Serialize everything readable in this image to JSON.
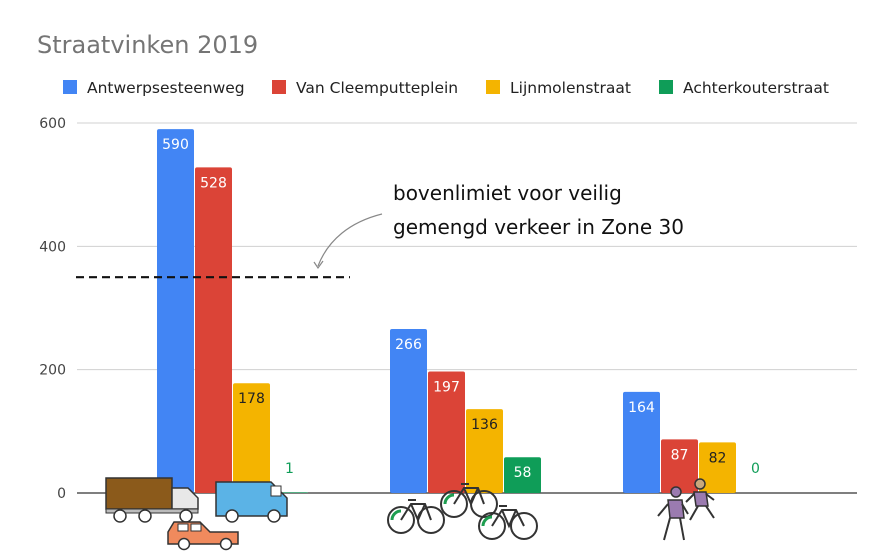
{
  "chart_data": {
    "type": "bar",
    "title": "Straatvinken 2019",
    "xlabel": "",
    "ylabel": "",
    "ylim": [
      0,
      600
    ],
    "yticks": [
      0,
      200,
      400,
      600
    ],
    "grid": true,
    "legend_position": "top",
    "categories": [
      "Gemotoriseerd verkeer",
      "Fietsers",
      "Voetgangers"
    ],
    "category_icons": [
      "truck-van-car-icon",
      "bicycles-icon",
      "pedestrians-icon"
    ],
    "series": [
      {
        "name": "Antwerpsesteenweg",
        "color": "#4285f4",
        "label_color": "#ffffff",
        "values": [
          590,
          266,
          164
        ]
      },
      {
        "name": "Van Cleemputteplein",
        "color": "#db4437",
        "label_color": "#ffffff",
        "values": [
          528,
          197,
          87
        ]
      },
      {
        "name": "Lijnmolenstraat",
        "color": "#f4b400",
        "label_color": "#222222",
        "values": [
          178,
          136,
          82
        ]
      },
      {
        "name": "Achterkouterstraat",
        "color": "#0f9d58",
        "label_color": "#ffffff",
        "label_outside_color": "#0f9d58",
        "values": [
          1,
          58,
          0
        ]
      }
    ],
    "reference_line": {
      "value": 350,
      "style": "dashed",
      "color": "#111111"
    },
    "annotation": {
      "lines": [
        "bovenlimiet voor veilig",
        "gemengd verkeer in Zone 30"
      ]
    }
  }
}
